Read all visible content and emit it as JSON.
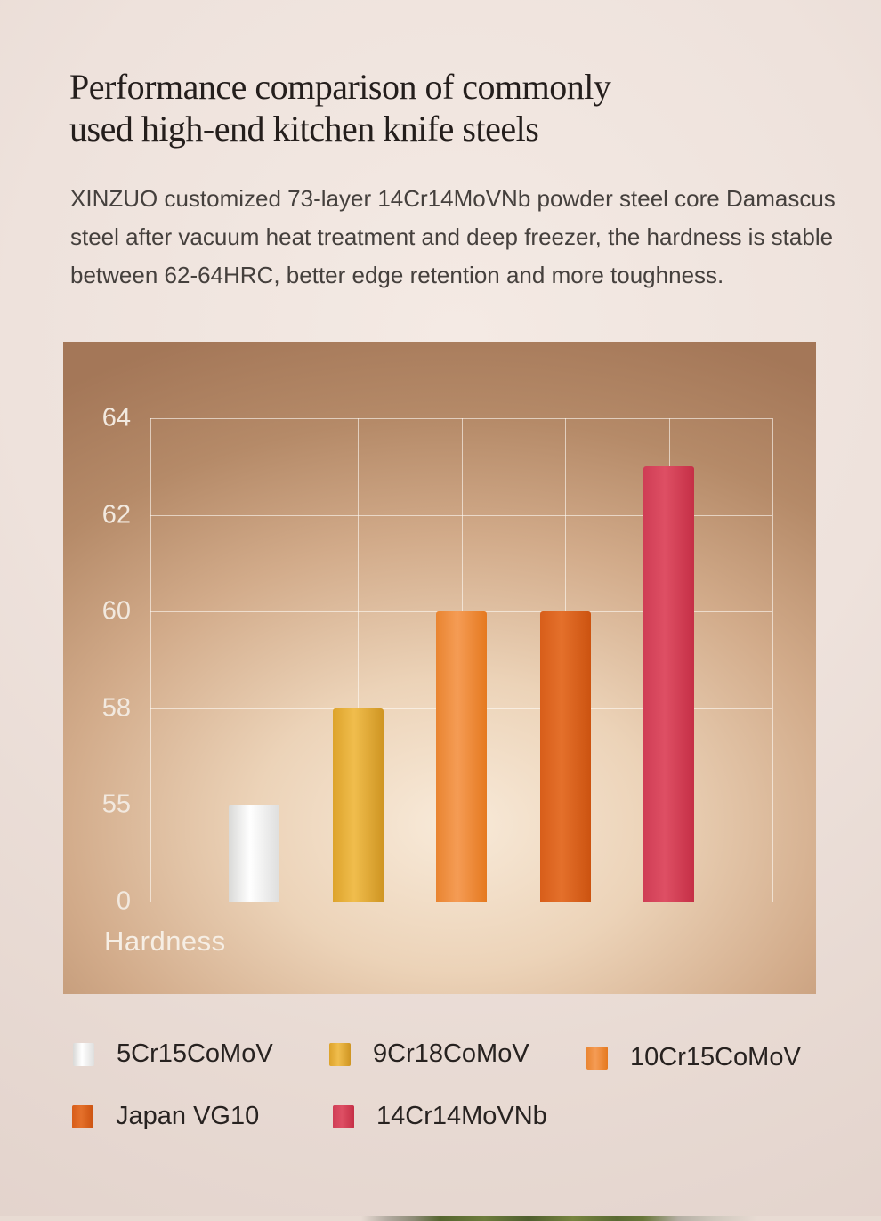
{
  "page": {
    "title_lines": [
      "Performance comparison of commonly",
      "used high-end kitchen knife steels"
    ],
    "description_lines": [
      "XINZUO customized 73-layer 14Cr14MoVNb powder steel core Damascus",
      "steel after vacuum heat treatment and deep freezer, the hardness is stable",
      "between 62-64HRC, better edge retention and more toughness."
    ]
  },
  "chart_data": {
    "type": "bar",
    "title": "",
    "xlabel": "Hardness",
    "ylabel": "",
    "yticks_top_to_bottom": [
      64,
      62,
      60,
      58,
      55,
      0
    ],
    "axis_scale": "ticks evenly spaced; value axis is non-linear (0,55,58,60,62,64)",
    "grid": true,
    "categories": [
      "5Cr15CoMoV",
      "9Cr18CoMoV",
      "10Cr15CoMoV",
      "Japan VG10",
      "14Cr14MoVNb"
    ],
    "values": [
      55,
      58,
      60,
      60,
      63
    ],
    "bar_colors": [
      "#ffffff",
      "#eeb83f",
      "#f2954a",
      "#e0661f",
      "#d9455c"
    ],
    "legend_position": "below-chart"
  },
  "legend": {
    "items": [
      {
        "label": "5Cr15CoMoV",
        "color": "#ffffff"
      },
      {
        "label": "9Cr18CoMoV",
        "color": "#eeb83f"
      },
      {
        "label": "10Cr15CoMoV",
        "color": "#f2954a"
      },
      {
        "label": "Japan VG10",
        "color": "#e0661f"
      },
      {
        "label": "14Cr14MoVNb",
        "color": "#d9455c"
      }
    ]
  },
  "colors": {
    "page_background": "#eee2dc",
    "panel_brown": "#a97c5e",
    "panel_glow": "#f8ead9",
    "gridline": "#fffcf6",
    "axis_label": "#f2e9df",
    "title_text": "#241e1c",
    "body_text": "#45403d",
    "legend_text": "#272220"
  }
}
